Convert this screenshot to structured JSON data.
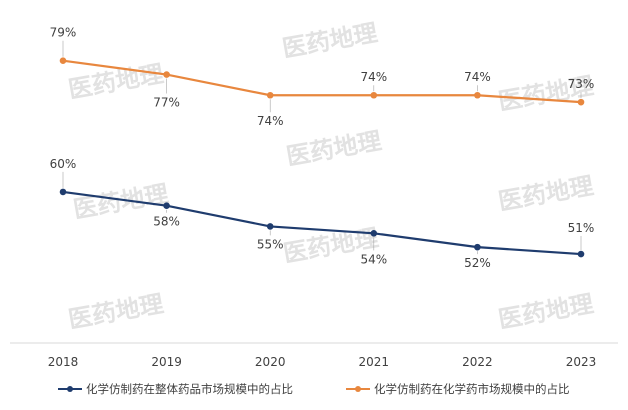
{
  "watermark": "医药地理",
  "colors": {
    "series_overall": "#1f3c6e",
    "series_chem": "#e8873e",
    "axis": "#d9d9d9",
    "text": "#404040"
  },
  "chart_data": {
    "type": "line",
    "x": [
      "2018",
      "2019",
      "2020",
      "2021",
      "2022",
      "2023"
    ],
    "ylim": [
      40,
      82
    ],
    "grid": false,
    "legend_position": "bottom",
    "value_suffix": "%",
    "series": [
      {
        "name": "化学仿制药在整体药品市场规模中的占比",
        "values": [
          60,
          58,
          55,
          54,
          52,
          51
        ],
        "labels": [
          "60%",
          "58%",
          "55%",
          "54%",
          "52%",
          "51%"
        ]
      },
      {
        "name": "化学仿制药在化学药市场规模中的占比",
        "values": [
          79,
          77,
          74,
          74,
          74,
          73
        ],
        "labels": [
          "79%",
          "77%",
          "74%",
          "74%",
          "74%",
          "73%"
        ]
      }
    ]
  }
}
